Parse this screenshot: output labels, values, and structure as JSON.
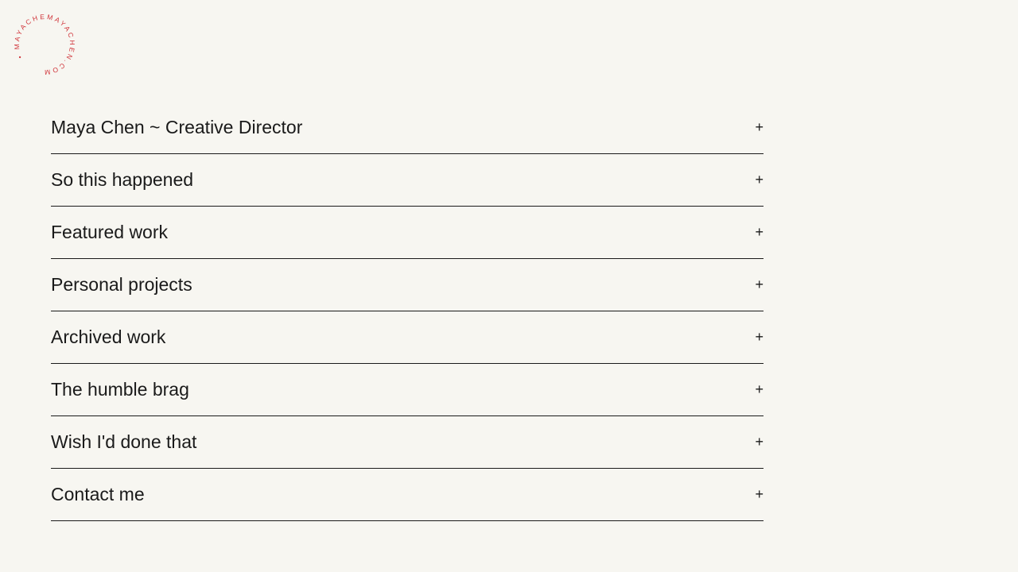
{
  "logo": {
    "text": "• MAYACHEMAYACHEN.COM",
    "color": "#d0343a"
  },
  "sections": [
    {
      "label": "Maya Chen ~ Creative Director",
      "icon": "+"
    },
    {
      "label": "So this happened",
      "icon": "+"
    },
    {
      "label": "Featured work",
      "icon": "+"
    },
    {
      "label": "Personal projects",
      "icon": "+"
    },
    {
      "label": "Archived work",
      "icon": "+"
    },
    {
      "label": "The humble brag",
      "icon": "+"
    },
    {
      "label": "Wish I'd done that",
      "icon": "+"
    },
    {
      "label": "Contact me",
      "icon": "+"
    }
  ]
}
